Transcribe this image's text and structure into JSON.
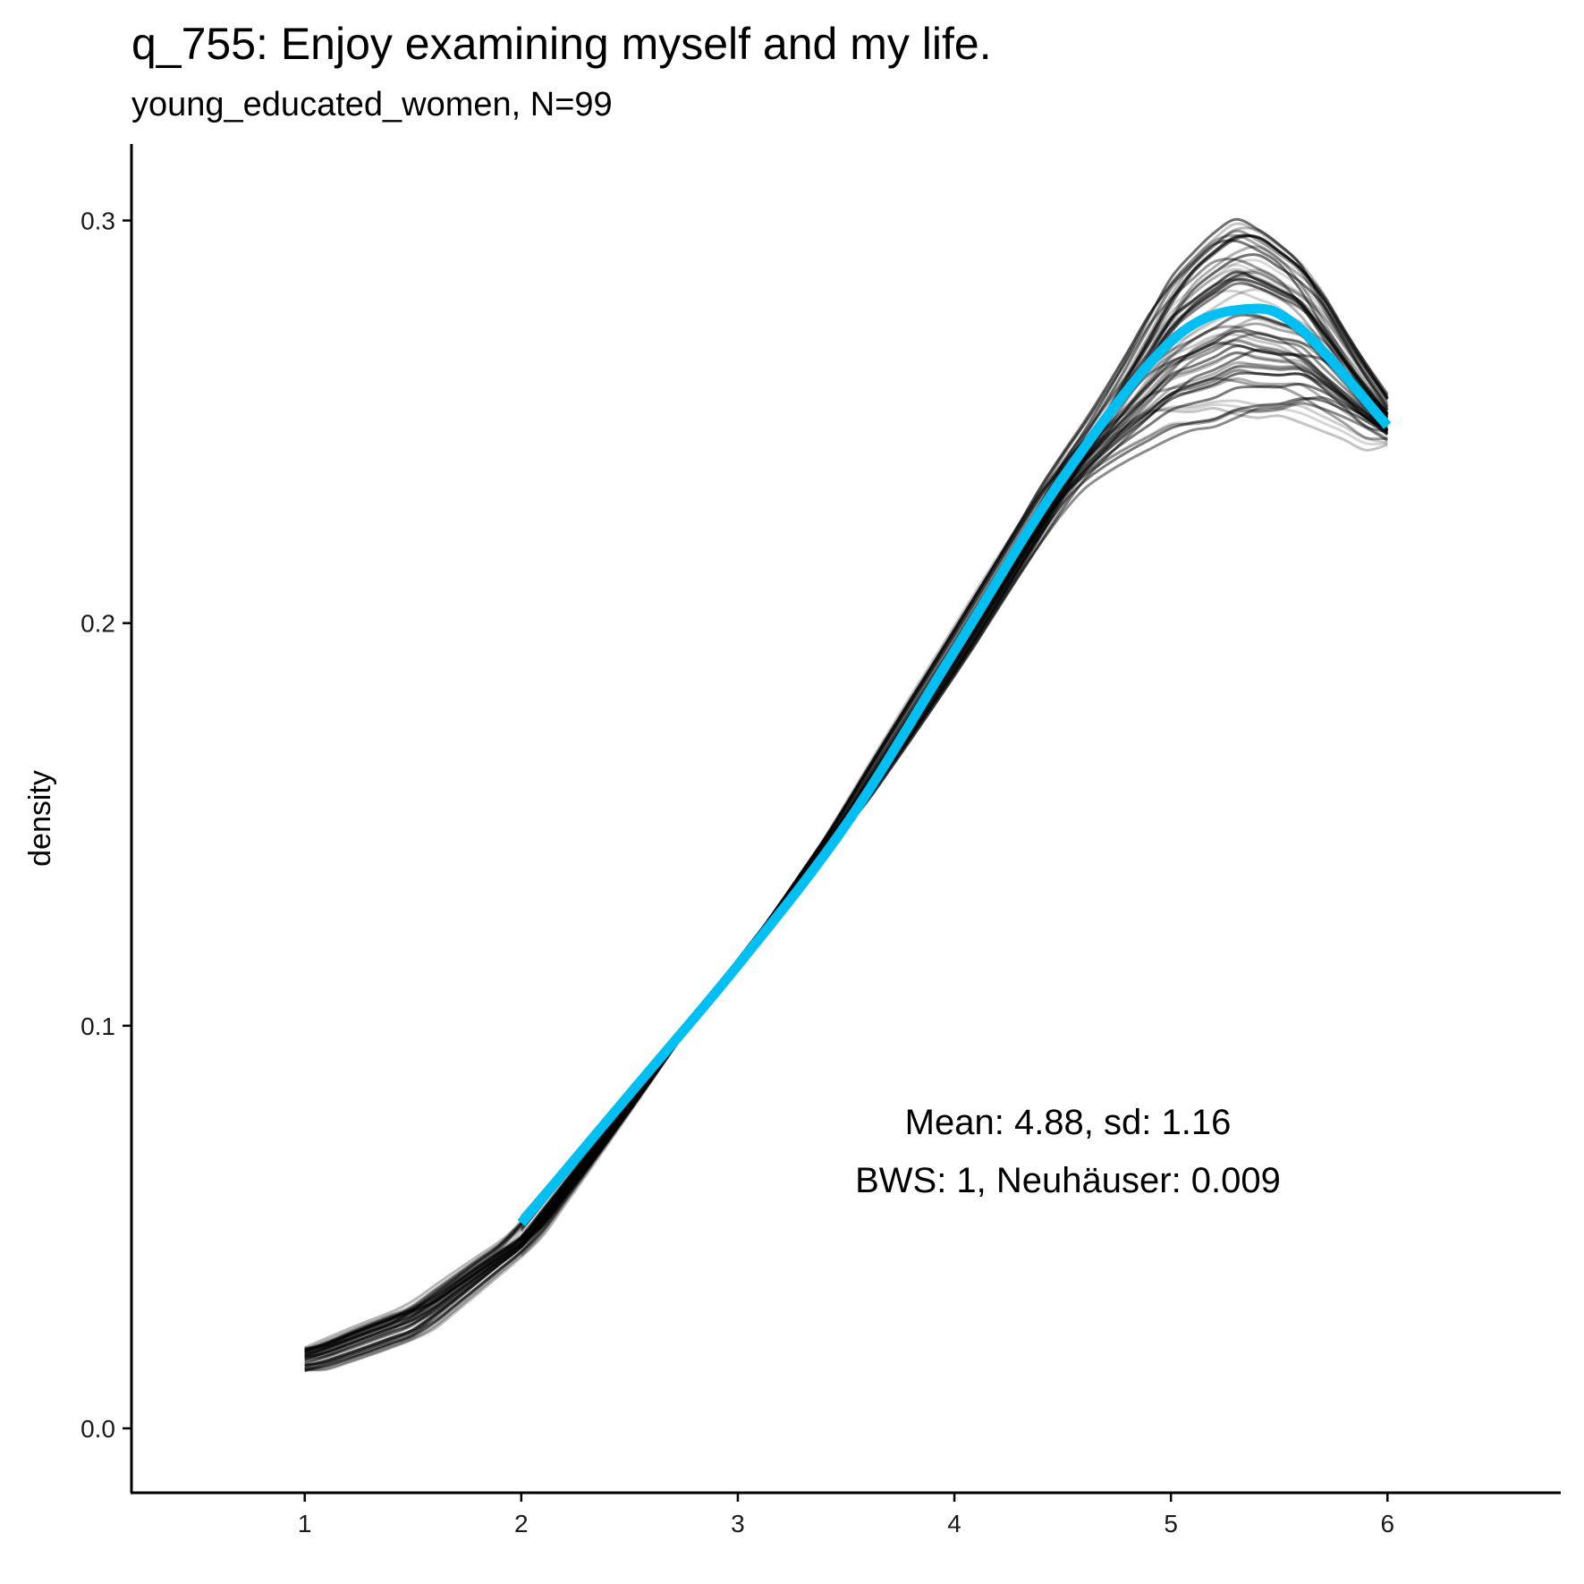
{
  "title": "q_755: Enjoy examining myself and my life.",
  "subtitle": "young_educated_women, N=99",
  "chart_data": {
    "type": "line",
    "title": "q_755: Enjoy examining myself and my life.",
    "subtitle": "young_educated_women, N=99",
    "xlabel": "",
    "ylabel": "density",
    "xlim": [
      0.2,
      6.8
    ],
    "ylim": [
      -0.016,
      0.319
    ],
    "x_ticks": [
      "1",
      "2",
      "3",
      "4",
      "5",
      "6"
    ],
    "x_tick_values": [
      1,
      2,
      3,
      4,
      5,
      6
    ],
    "y_ticks": [
      "0.0",
      "0.1",
      "0.2",
      "0.3"
    ],
    "y_tick_values": [
      0.0,
      0.1,
      0.2,
      0.3
    ],
    "grid": false,
    "series": [
      {
        "name": "density",
        "color": "#00BFF2",
        "x": [
          2.0,
          2.5,
          3.0,
          3.5,
          4.0,
          4.5,
          5.0,
          5.35,
          5.6,
          6.0
        ],
        "values": [
          0.051,
          0.083,
          0.115,
          0.15,
          0.193,
          0.236,
          0.27,
          0.278,
          0.273,
          0.249
        ]
      }
    ],
    "bootstrap": {
      "name": "bootstrap densities",
      "color": "#000000",
      "count": 60,
      "x_start": 1.0,
      "x_end": 6.0
    },
    "annotations": [
      "Mean: 4.88, sd: 1.16",
      "BWS: 1, Neuhäuser: 0.009"
    ]
  }
}
